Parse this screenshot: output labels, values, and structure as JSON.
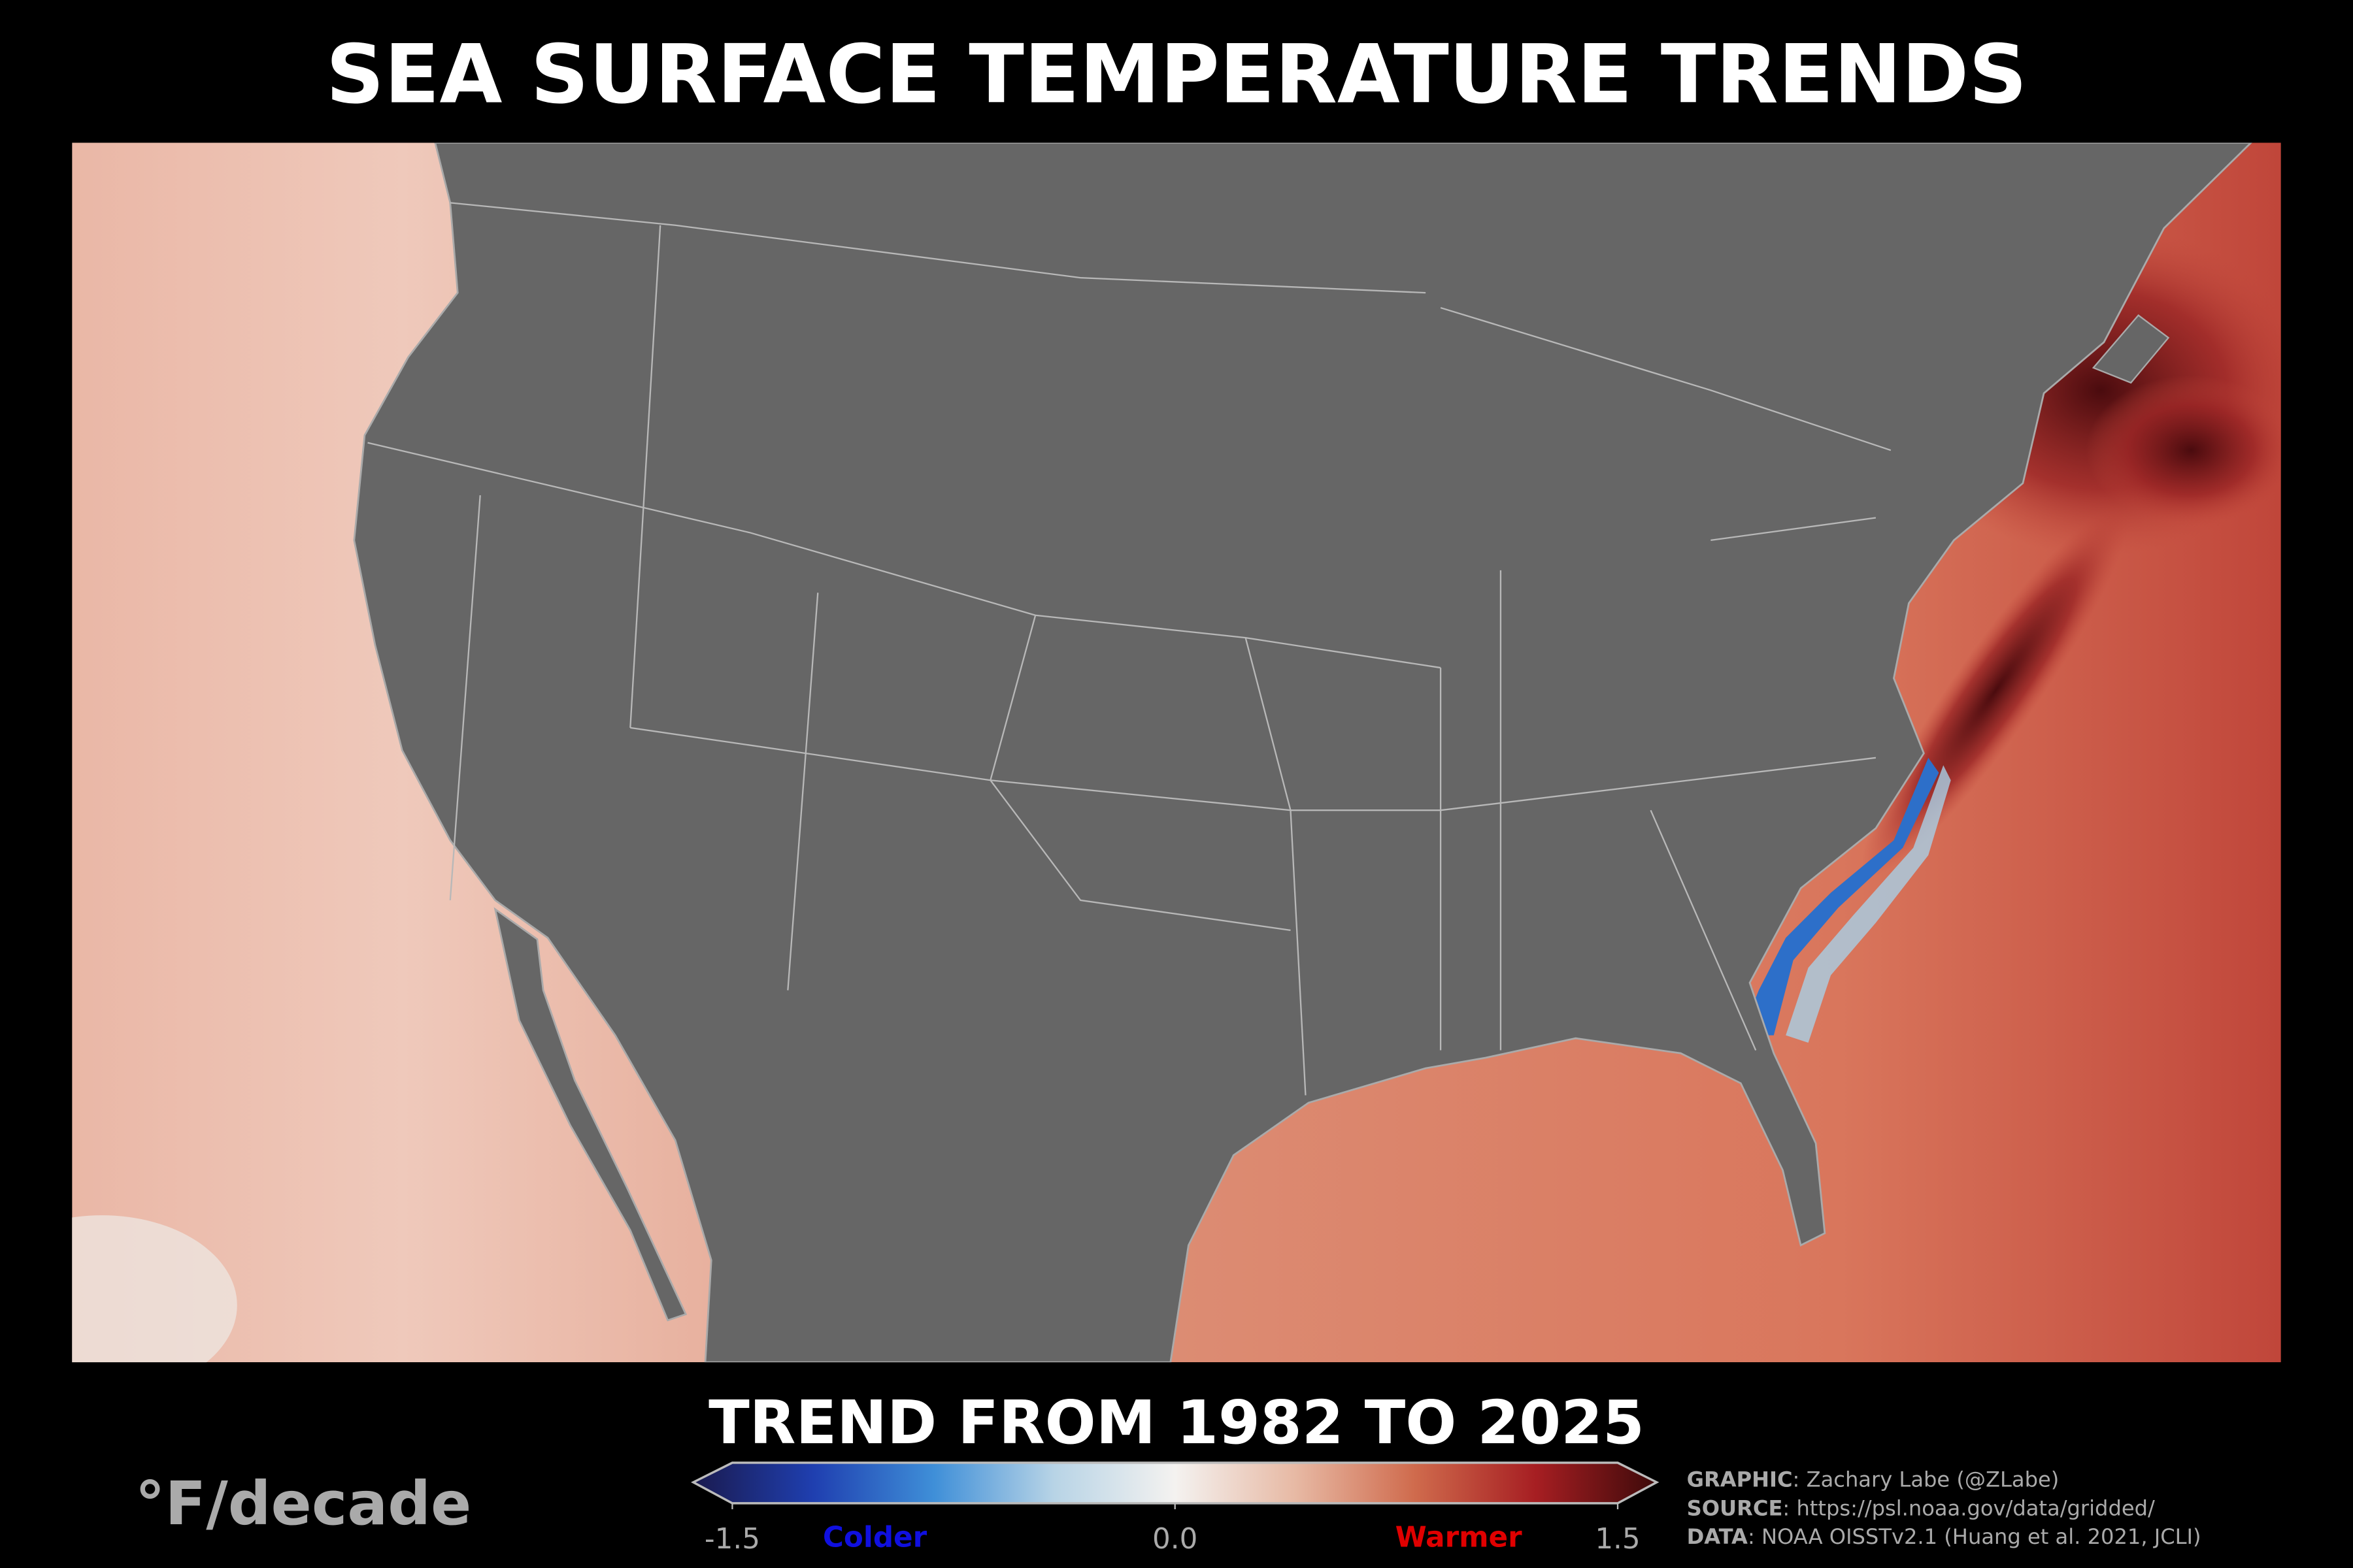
{
  "header": {
    "title": "SEA SURFACE TEMPERATURE TRENDS"
  },
  "legend": {
    "subtitle": "TREND FROM 1982 TO 2025",
    "unit": "°F/decade",
    "colorbar": {
      "range": [
        -1.5,
        1.5
      ],
      "ticks": [
        -1.5,
        {
          "value": 0,
          "label": "0.0"
        },
        1.5
      ],
      "colors": [
        "#1a1a4e",
        "#1f3fb0",
        "#3f8fd8",
        "#b8d4e6",
        "#f4f2f0",
        "#e7b9a4",
        "#cf6a4c",
        "#a61e22",
        "#3d0a0a"
      ],
      "low_label": "Colder",
      "high_label": "Warmer"
    }
  },
  "credits": [
    {
      "label": "GRAPHIC",
      "text": ": Zachary Labe (@ZLabe)"
    },
    {
      "label": "SOURCE",
      "text": ": https://psl.noaa.gov/data/gridded/"
    },
    {
      "label": "DATA",
      "text": ": NOAA OISSTv2.1 (Huang et al. 2021, JCLI)"
    }
  ]
}
